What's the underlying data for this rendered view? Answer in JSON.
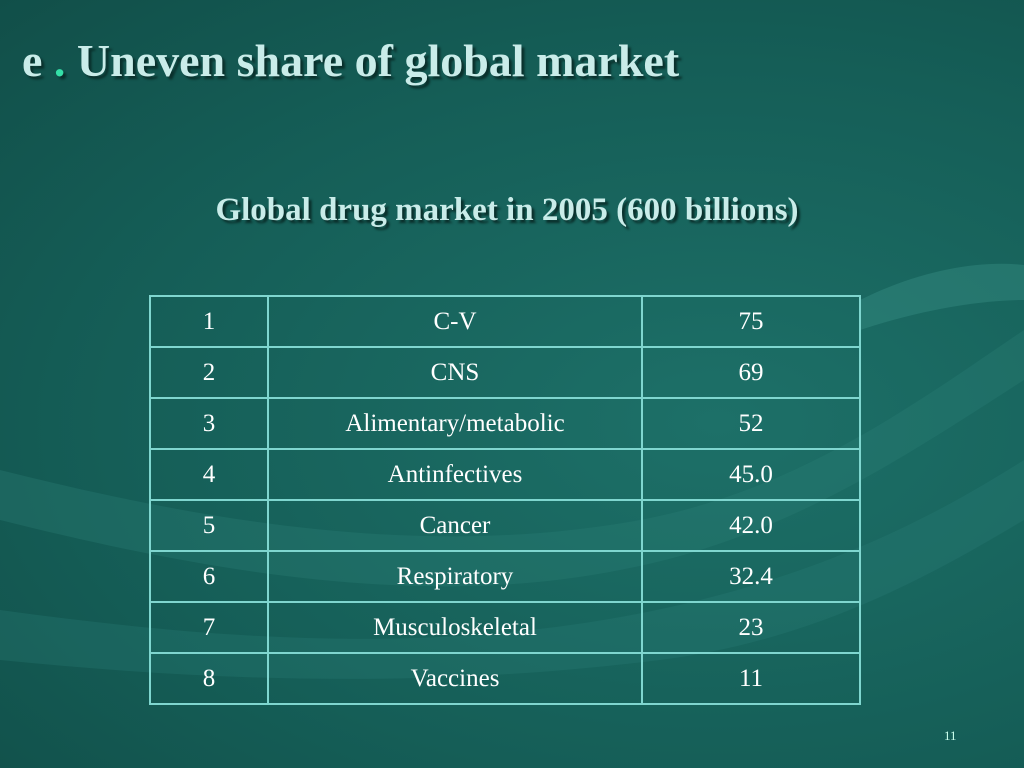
{
  "header": {
    "title_prefix": "e",
    "title_dot": ".",
    "title": "Uneven share of global market",
    "subtitle": "Global drug market in 2005 (600 billions)"
  },
  "table": {
    "rows": [
      [
        "1",
        "C-V",
        "75"
      ],
      [
        "2",
        "CNS",
        "69"
      ],
      [
        "3",
        "Alimentary/metabolic",
        "52"
      ],
      [
        "4",
        "Antinfectives",
        "45.0"
      ],
      [
        "5",
        "Cancer",
        "42.0"
      ],
      [
        "6",
        "Respiratory",
        "32.4"
      ],
      [
        "7",
        "Musculoskeletal",
        "23"
      ],
      [
        "8",
        "Vaccines",
        "11"
      ]
    ]
  },
  "footer": {
    "page_number": "11"
  }
}
